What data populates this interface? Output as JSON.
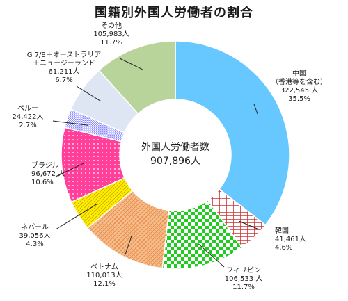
{
  "chart_data": {
    "type": "pie",
    "donut": true,
    "title": "国籍別外国人労働者の割合",
    "center_label": [
      "外国人労働者数",
      "907,896人"
    ],
    "total": 907896,
    "slices": [
      {
        "name": "中国\n（香港等を含む）",
        "value": 322545,
        "value_label": "322,545 人",
        "percent": 35.5,
        "percent_label": "35.5%",
        "color": "#66c8ff",
        "pattern": "solid"
      },
      {
        "name": "韓国",
        "value": 41461,
        "value_label": "41,461人",
        "percent": 4.6,
        "percent_label": "4.6%",
        "color": "#cc3333",
        "pattern": "grid"
      },
      {
        "name": "フィリピン",
        "value": 106533,
        "value_label": "106,533 人",
        "percent": 11.7,
        "percent_label": "11.7%",
        "color": "#22cc22",
        "pattern": "checker"
      },
      {
        "name": "ベトナム",
        "value": 110013,
        "value_label": "110,013人",
        "percent": 12.1,
        "percent_label": "12.1%",
        "color": "#f0a060",
        "pattern": "hatch"
      },
      {
        "name": "ネパール",
        "value": 39056,
        "value_label": "39,056人",
        "percent": 4.3,
        "percent_label": "4.3%",
        "color": "#ffee00",
        "pattern": "diag"
      },
      {
        "name": "ブラジル",
        "value": 96672,
        "value_label": "96,672 人",
        "percent": 10.6,
        "percent_label": "10.6%",
        "color": "#ff3f9a",
        "pattern": "dots"
      },
      {
        "name": "ペルー",
        "value": 24422,
        "value_label": "24,422人",
        "percent": 2.7,
        "percent_label": "2.7%",
        "color": "#c8c8ff",
        "pattern": "fine"
      },
      {
        "name": "G 7/8＋オーストラリア\n＋ニュージーランド",
        "value": 61211,
        "value_label": "61,211人",
        "percent": 6.7,
        "percent_label": "6.7%",
        "color": "#dde6f2",
        "pattern": "solid"
      },
      {
        "name": "その他",
        "value": 105983,
        "value_label": "105,983人",
        "percent": 11.7,
        "percent_label": "11.7%",
        "color": "#b8d49a",
        "pattern": "solid"
      }
    ]
  }
}
